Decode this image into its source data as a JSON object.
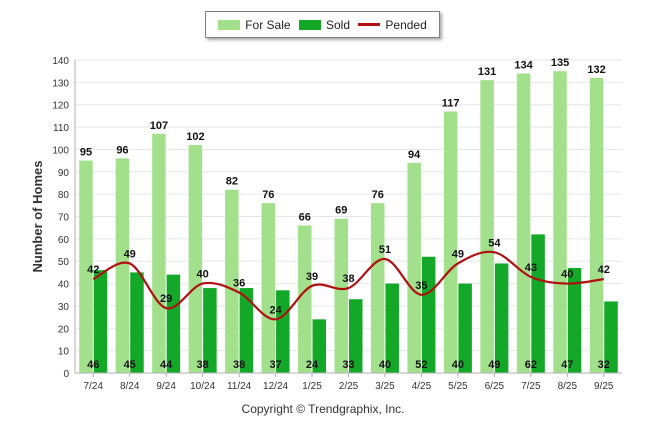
{
  "chart_data": {
    "type": "bar",
    "title": "",
    "xlabel": "",
    "ylabel": "Number of Homes",
    "ylim": [
      0,
      140
    ],
    "yticks": [
      0,
      10,
      20,
      30,
      40,
      50,
      60,
      70,
      80,
      90,
      100,
      110,
      120,
      130,
      140
    ],
    "categories": [
      "7/24",
      "8/24",
      "9/24",
      "10/24",
      "11/24",
      "12/24",
      "1/25",
      "2/25",
      "3/25",
      "4/25",
      "5/25",
      "6/25",
      "7/25",
      "8/25",
      "9/25"
    ],
    "series": [
      {
        "name": "For Sale",
        "kind": "bar",
        "color": "#a3e08c",
        "values": [
          95,
          96,
          107,
          102,
          82,
          76,
          66,
          69,
          76,
          94,
          117,
          131,
          134,
          135,
          132
        ]
      },
      {
        "name": "Sold",
        "kind": "bar",
        "color": "#14a829",
        "values": [
          46,
          45,
          44,
          38,
          38,
          37,
          24,
          33,
          40,
          52,
          40,
          49,
          62,
          47,
          32
        ]
      },
      {
        "name": "Pended",
        "kind": "line",
        "color": "#b01010",
        "values": [
          42,
          49,
          29,
          40,
          36,
          24,
          39,
          38,
          51,
          35,
          49,
          54,
          43,
          40,
          42
        ]
      }
    ],
    "legend_position": "top-center",
    "grid": true
  },
  "legend": {
    "for_sale": "For Sale",
    "sold": "Sold",
    "pended": "Pended"
  },
  "footer": {
    "copyright": "Copyright © Trendgraphix, Inc."
  }
}
